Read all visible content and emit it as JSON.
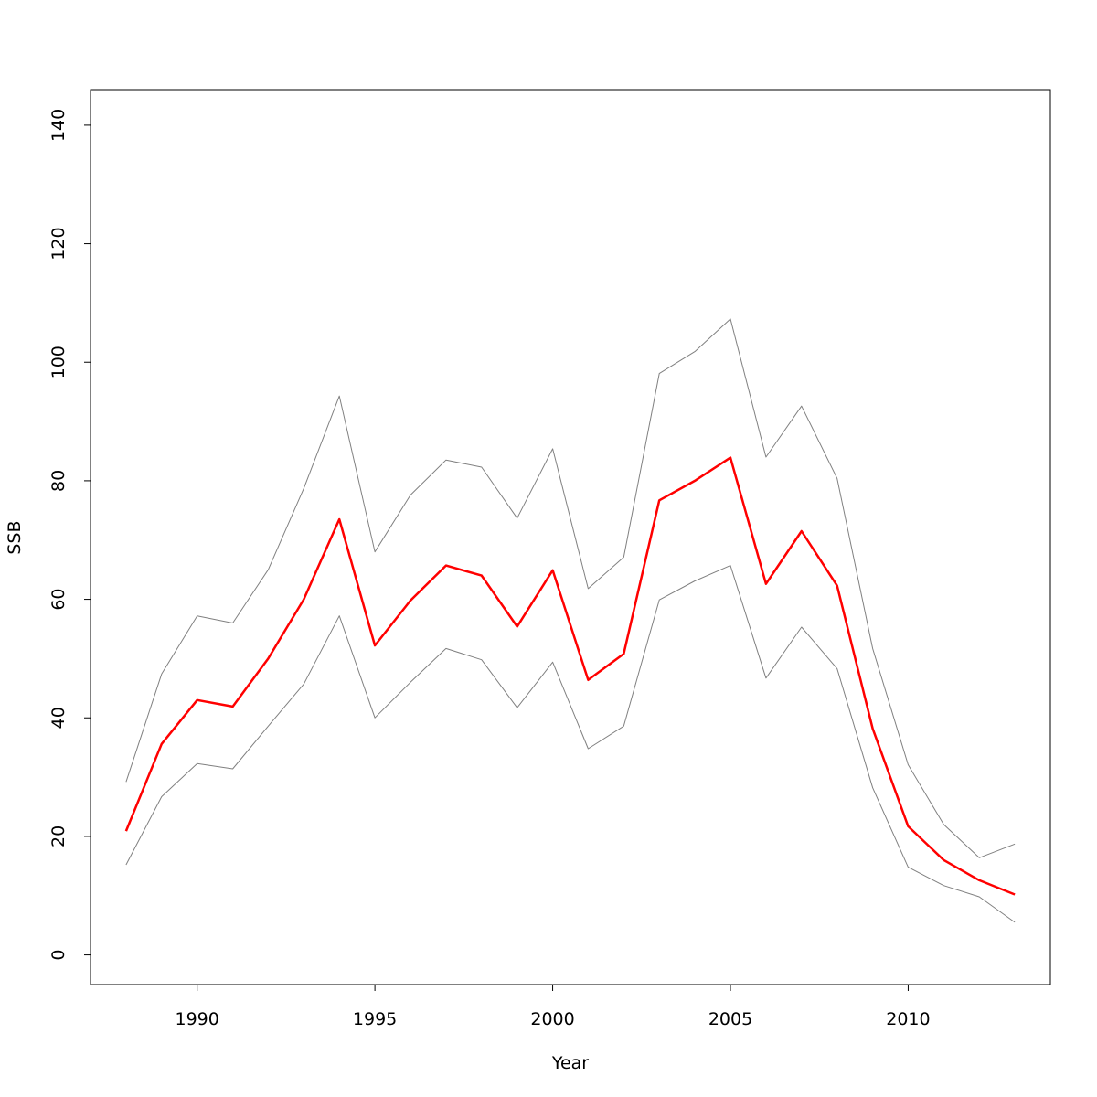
{
  "chart_data": {
    "type": "line",
    "xlabel": "Year",
    "ylabel": "SSB",
    "xlim": [
      1987,
      2014
    ],
    "ylim": [
      -5,
      146
    ],
    "x_ticks": [
      1990,
      1995,
      2000,
      2005,
      2010
    ],
    "y_ticks": [
      0,
      20,
      40,
      60,
      80,
      100,
      120,
      140
    ],
    "grid": false,
    "legend": "none",
    "x": [
      1988,
      1989,
      1990,
      1991,
      1992,
      1993,
      1994,
      1995,
      1996,
      1997,
      1998,
      1999,
      2000,
      2001,
      2002,
      2003,
      2004,
      2005,
      2006,
      2007,
      2008,
      2009,
      2010,
      2011,
      2012,
      2013
    ],
    "series": [
      {
        "color": "#ff0000",
        "line_width": 2.5,
        "values": [
          20.9,
          35.6,
          43.0,
          41.9,
          50.0,
          60.0,
          73.5,
          52.2,
          59.8,
          65.7,
          64.0,
          55.4,
          64.9,
          46.4,
          50.8,
          76.7,
          80.0,
          83.9,
          62.6,
          71.5,
          62.3,
          38.2,
          21.7,
          16.0,
          12.6,
          10.2
        ]
      },
      {
        "color": "#808080",
        "line_width": 1,
        "values": [
          29.2,
          47.4,
          57.2,
          56.0,
          65.0,
          78.7,
          94.3,
          68.0,
          77.6,
          83.5,
          82.3,
          73.7,
          85.4,
          61.8,
          67.1,
          98.1,
          101.8,
          107.3,
          84.0,
          92.6,
          80.4,
          51.7,
          32.1,
          22.0,
          16.4,
          18.7
        ]
      },
      {
        "color": "#808080",
        "line_width": 1,
        "values": [
          15.2,
          26.7,
          32.3,
          31.4,
          38.6,
          45.7,
          57.2,
          40.0,
          46.0,
          51.7,
          49.8,
          41.7,
          49.4,
          34.8,
          38.6,
          59.9,
          63.1,
          65.7,
          46.7,
          55.3,
          48.3,
          28.2,
          14.8,
          11.7,
          9.8,
          5.5
        ]
      }
    ]
  }
}
